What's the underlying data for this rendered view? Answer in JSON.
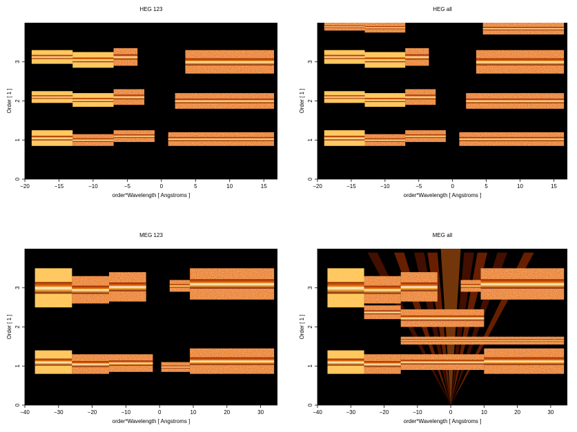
{
  "chart_data": [
    {
      "type": "heatmap",
      "title": "HEG 123",
      "xlabel": "order*Wavelength [ Angstroms ]",
      "ylabel": "Order [ 1 ]",
      "xlim": [
        -20,
        17
      ],
      "ylim": [
        0,
        4
      ],
      "xticks": [
        -20,
        -15,
        -10,
        -5,
        0,
        5,
        10,
        15
      ],
      "yticks": [
        0,
        1,
        2,
        3
      ],
      "background": "#000000",
      "colormap": [
        "#000000",
        "#5a0000",
        "#b02000",
        "#e87000",
        "#ffc040",
        "#ffffff"
      ],
      "strips": [
        {
          "x0": -19,
          "x1": -13,
          "y0": 2.95,
          "y1": 3.3,
          "level": 0.8
        },
        {
          "x0": -13,
          "x1": -7,
          "y0": 2.85,
          "y1": 3.25,
          "level": 0.75
        },
        {
          "x0": -7,
          "x1": -3.5,
          "y0": 2.9,
          "y1": 3.35,
          "level": 0.7
        },
        {
          "x0": 3.5,
          "x1": 16.5,
          "y0": 2.7,
          "y1": 3.3,
          "level": 0.6
        },
        {
          "x0": -19,
          "x1": -13,
          "y0": 1.95,
          "y1": 2.25,
          "level": 0.8
        },
        {
          "x0": -13,
          "x1": -7,
          "y0": 1.85,
          "y1": 2.2,
          "level": 0.75
        },
        {
          "x0": -7,
          "x1": -2.5,
          "y0": 1.9,
          "y1": 2.3,
          "level": 0.7
        },
        {
          "x0": 2,
          "x1": 16.5,
          "y0": 1.8,
          "y1": 2.2,
          "level": 0.6
        },
        {
          "x0": -19,
          "x1": -13,
          "y0": 0.85,
          "y1": 1.25,
          "level": 0.85
        },
        {
          "x0": -13,
          "x1": -7,
          "y0": 0.85,
          "y1": 1.15,
          "level": 0.7
        },
        {
          "x0": -7,
          "x1": -1,
          "y0": 0.95,
          "y1": 1.25,
          "level": 0.7
        },
        {
          "x0": 1,
          "x1": 16.5,
          "y0": 0.85,
          "y1": 1.2,
          "level": 0.6
        }
      ]
    },
    {
      "type": "heatmap",
      "title": "HEG all",
      "xlabel": "order*Wavelength [ Angstroms ]",
      "ylabel": "Order [ 1 ]",
      "xlim": [
        -20,
        17
      ],
      "ylim": [
        0,
        4
      ],
      "xticks": [
        -20,
        -15,
        -10,
        -5,
        0,
        5,
        10,
        15
      ],
      "yticks": [
        0,
        1,
        2,
        3
      ],
      "background": "#000000",
      "colormap": [
        "#000000",
        "#5a0000",
        "#b02000",
        "#e87000",
        "#ffc040",
        "#ffffff"
      ],
      "strips": [
        {
          "x0": -19,
          "x1": -13,
          "y0": 3.8,
          "y1": 4.0,
          "level": 0.6
        },
        {
          "x0": -13,
          "x1": -7,
          "y0": 3.75,
          "y1": 4.0,
          "level": 0.6
        },
        {
          "x0": 4.5,
          "x1": 16.5,
          "y0": 3.7,
          "y1": 4.0,
          "level": 0.6
        },
        {
          "x0": -19,
          "x1": -13,
          "y0": 2.95,
          "y1": 3.3,
          "level": 0.8
        },
        {
          "x0": -13,
          "x1": -7,
          "y0": 2.85,
          "y1": 3.25,
          "level": 0.75
        },
        {
          "x0": -7,
          "x1": -3.5,
          "y0": 2.9,
          "y1": 3.35,
          "level": 0.7
        },
        {
          "x0": 3.5,
          "x1": 16.5,
          "y0": 2.7,
          "y1": 3.3,
          "level": 0.6
        },
        {
          "x0": -19,
          "x1": -13,
          "y0": 1.95,
          "y1": 2.25,
          "level": 0.8
        },
        {
          "x0": -13,
          "x1": -7,
          "y0": 1.85,
          "y1": 2.2,
          "level": 0.75
        },
        {
          "x0": -7,
          "x1": -2.5,
          "y0": 1.9,
          "y1": 2.3,
          "level": 0.7
        },
        {
          "x0": 2,
          "x1": 16.5,
          "y0": 1.8,
          "y1": 2.2,
          "level": 0.6
        },
        {
          "x0": -19,
          "x1": -13,
          "y0": 0.85,
          "y1": 1.25,
          "level": 0.85
        },
        {
          "x0": -13,
          "x1": -7,
          "y0": 0.85,
          "y1": 1.15,
          "level": 0.7
        },
        {
          "x0": -7,
          "x1": -1,
          "y0": 0.95,
          "y1": 1.25,
          "level": 0.7
        },
        {
          "x0": 1,
          "x1": 16.5,
          "y0": 0.85,
          "y1": 1.2,
          "level": 0.6
        }
      ]
    },
    {
      "type": "heatmap",
      "title": "MEG 123",
      "xlabel": "order*Wavelength [ Angstroms ]",
      "ylabel": "Order [ 1 ]",
      "xlim": [
        -40,
        35
      ],
      "ylim": [
        0,
        4
      ],
      "xticks": [
        -40,
        -30,
        -20,
        -10,
        0,
        10,
        20,
        30
      ],
      "yticks": [
        0,
        1,
        2,
        3
      ],
      "background": "#000000",
      "colormap": [
        "#000000",
        "#5a0000",
        "#b02000",
        "#e87000",
        "#ffc040",
        "#ffffff"
      ],
      "strips": [
        {
          "x0": -37,
          "x1": -26,
          "y0": 2.5,
          "y1": 3.5,
          "level": 0.85
        },
        {
          "x0": -26,
          "x1": -15,
          "y0": 2.6,
          "y1": 3.3,
          "level": 0.7
        },
        {
          "x0": -15,
          "x1": -4,
          "y0": 2.65,
          "y1": 3.4,
          "level": 0.7
        },
        {
          "x0": 3,
          "x1": 9,
          "y0": 2.9,
          "y1": 3.2,
          "level": 0.65
        },
        {
          "x0": 9,
          "x1": 34,
          "y0": 2.7,
          "y1": 3.5,
          "level": 0.6
        },
        {
          "x0": -37,
          "x1": -26,
          "y0": 0.8,
          "y1": 1.4,
          "level": 0.85
        },
        {
          "x0": -26,
          "x1": -15,
          "y0": 0.8,
          "y1": 1.3,
          "level": 0.7
        },
        {
          "x0": -15,
          "x1": -2,
          "y0": 0.85,
          "y1": 1.3,
          "level": 0.7
        },
        {
          "x0": 0.5,
          "x1": 9,
          "y0": 0.85,
          "y1": 1.1,
          "level": 0.6
        },
        {
          "x0": 9,
          "x1": 34,
          "y0": 0.8,
          "y1": 1.45,
          "level": 0.6
        }
      ]
    },
    {
      "type": "heatmap",
      "title": "MEG all",
      "xlabel": "order*Wavelength [ Angstroms ]",
      "ylabel": "Order [ 1 ]",
      "xlim": [
        -40,
        35
      ],
      "ylim": [
        0,
        4
      ],
      "xticks": [
        -40,
        -30,
        -20,
        -10,
        0,
        10,
        20,
        30
      ],
      "yticks": [
        0,
        1,
        2,
        3
      ],
      "background": "#000000",
      "colormap": [
        "#000000",
        "#5a0000",
        "#b02000",
        "#e87000",
        "#ffc040",
        "#ffffff"
      ],
      "strips": [
        {
          "x0": -37,
          "x1": -26,
          "y0": 2.5,
          "y1": 3.5,
          "level": 0.85
        },
        {
          "x0": -26,
          "x1": -15,
          "y0": 2.6,
          "y1": 3.3,
          "level": 0.7
        },
        {
          "x0": -15,
          "x1": -4,
          "y0": 2.65,
          "y1": 3.4,
          "level": 0.7
        },
        {
          "x0": 3,
          "x1": 9,
          "y0": 2.9,
          "y1": 3.2,
          "level": 0.65
        },
        {
          "x0": 9,
          "x1": 34,
          "y0": 2.7,
          "y1": 3.5,
          "level": 0.6
        },
        {
          "x0": -26,
          "x1": -15,
          "y0": 2.2,
          "y1": 2.55,
          "level": 0.55
        },
        {
          "x0": -15,
          "x1": 10,
          "y0": 2.0,
          "y1": 2.45,
          "level": 0.5
        },
        {
          "x0": -15,
          "x1": 34,
          "y0": 1.55,
          "y1": 1.75,
          "level": 0.65
        },
        {
          "x0": -37,
          "x1": -26,
          "y0": 0.8,
          "y1": 1.4,
          "level": 0.85
        },
        {
          "x0": -26,
          "x1": -15,
          "y0": 0.8,
          "y1": 1.3,
          "level": 0.7
        },
        {
          "x0": -15,
          "x1": 10,
          "y0": 0.9,
          "y1": 1.3,
          "level": 0.7
        },
        {
          "x0": 10,
          "x1": 34,
          "y0": 0.8,
          "y1": 1.45,
          "level": 0.6
        }
      ]
    }
  ]
}
